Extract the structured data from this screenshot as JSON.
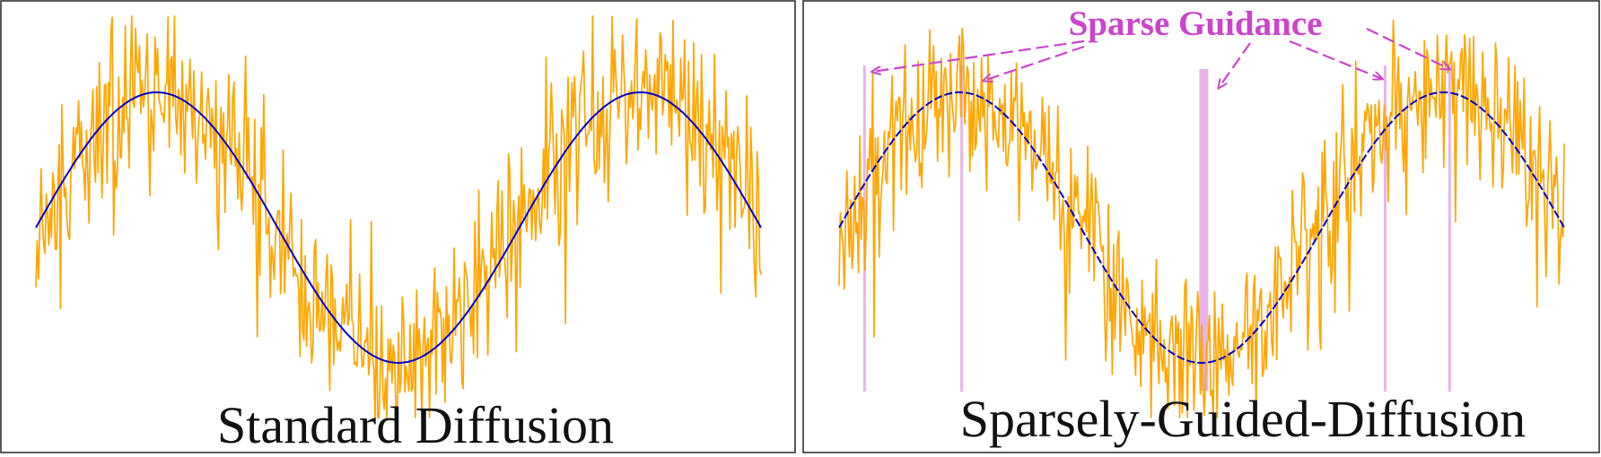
{
  "colors": {
    "noisy_signal": "#ffa500",
    "clean_signal": "#0000cc",
    "guidance_bar": "#e8b4e8",
    "annotation": "#cc44cc",
    "frame": "#333333"
  },
  "panels": [
    {
      "caption": "Standard Diffusion",
      "curve_style": "solid",
      "guidance_label": "",
      "guidance_positions": [],
      "guidance_emphasis_index": -1
    },
    {
      "caption": "Sparsely-Guided-Diffusion",
      "curve_style": "dashed",
      "guidance_label": "Sparse Guidance",
      "guidance_positions": [
        0.035,
        0.169,
        0.503,
        0.753,
        0.842
      ],
      "guidance_emphasis_index": 2
    }
  ],
  "signal": {
    "periods": 1.5,
    "noise_seed": 7
  }
}
